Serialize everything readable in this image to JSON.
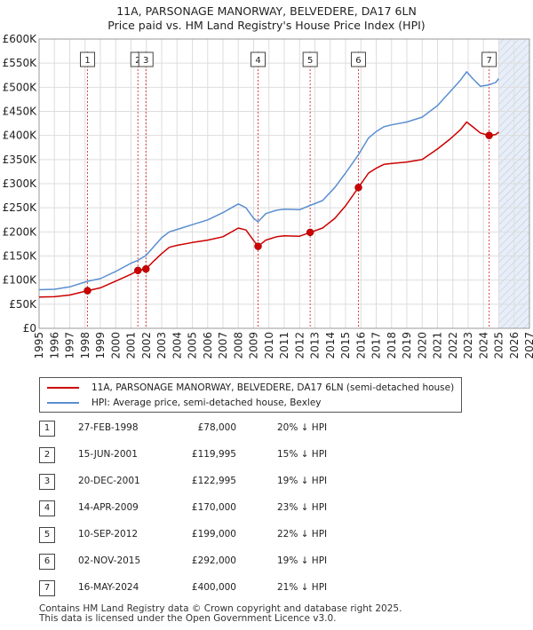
{
  "title_line1": "11A, PARSONAGE MANORWAY, BELVEDERE, DA17 6LN",
  "title_line2": "Price paid vs. HM Land Registry's House Price Index (HPI)",
  "legend": {
    "property_label": "11A, PARSONAGE MANORWAY, BELVEDERE, DA17 6LN (semi-detached house)",
    "hpi_label": "HPI: Average price, semi-detached house, Bexley"
  },
  "colors": {
    "property": "#cc0000",
    "hpi": "#5a8fd0",
    "marker_line": "#dd4444",
    "grid": "#dddddd",
    "shade": "#e8eef8"
  },
  "transactions": [
    {
      "num": "1",
      "date": "27-FEB-1998",
      "price": "£78,000",
      "hpi": "20% ↓ HPI"
    },
    {
      "num": "2",
      "date": "15-JUN-2001",
      "price": "£119,995",
      "hpi": "15% ↓ HPI"
    },
    {
      "num": "3",
      "date": "20-DEC-2001",
      "price": "£122,995",
      "hpi": "19% ↓ HPI"
    },
    {
      "num": "4",
      "date": "14-APR-2009",
      "price": "£170,000",
      "hpi": "23% ↓ HPI"
    },
    {
      "num": "5",
      "date": "10-SEP-2012",
      "price": "£199,000",
      "hpi": "22% ↓ HPI"
    },
    {
      "num": "6",
      "date": "02-NOV-2015",
      "price": "£292,000",
      "hpi": "19% ↓ HPI"
    },
    {
      "num": "7",
      "date": "16-MAY-2024",
      "price": "£400,000",
      "hpi": "21% ↓ HPI"
    }
  ],
  "footer_line1": "Contains HM Land Registry data © Crown copyright and database right 2025.",
  "footer_line2": "This data is licensed under the Open Government Licence v3.0.",
  "chart_data": {
    "type": "line",
    "xlim": [
      1995,
      2027
    ],
    "ylim": [
      0,
      600000
    ],
    "yticks": [
      0,
      50000,
      100000,
      150000,
      200000,
      250000,
      300000,
      350000,
      400000,
      450000,
      500000,
      550000,
      600000
    ],
    "ytick_labels": [
      "£0",
      "£50K",
      "£100K",
      "£150K",
      "£200K",
      "£250K",
      "£300K",
      "£350K",
      "£400K",
      "£450K",
      "£500K",
      "£550K",
      "£600K"
    ],
    "xticks": [
      "1995",
      "1996",
      "1997",
      "1998",
      "1999",
      "2000",
      "2001",
      "2002",
      "2003",
      "2004",
      "2005",
      "2006",
      "2007",
      "2008",
      "2009",
      "2010",
      "2011",
      "2012",
      "2013",
      "2014",
      "2015",
      "2016",
      "2017",
      "2018",
      "2019",
      "2020",
      "2021",
      "2022",
      "2023",
      "2024",
      "2025",
      "2026",
      "2027"
    ],
    "grid": true,
    "future_shaded_from": 2025.0,
    "series": [
      {
        "name": "11A, PARSONAGE MANORWAY, BELVEDERE, DA17 6LN (semi-detached house)",
        "points": [
          [
            1995.0,
            65000
          ],
          [
            1996.0,
            65500
          ],
          [
            1997.0,
            69000
          ],
          [
            1998.16,
            78000
          ],
          [
            1999.0,
            84000
          ],
          [
            2000.0,
            98000
          ],
          [
            2001.0,
            112000
          ],
          [
            2001.45,
            119995
          ],
          [
            2001.97,
            122995
          ],
          [
            2002.5,
            140000
          ],
          [
            2003.0,
            155000
          ],
          [
            2003.5,
            168000
          ],
          [
            2004.0,
            172000
          ],
          [
            2005.0,
            178000
          ],
          [
            2006.0,
            183000
          ],
          [
            2007.0,
            190000
          ],
          [
            2008.0,
            208000
          ],
          [
            2008.5,
            204000
          ],
          [
            2009.0,
            182000
          ],
          [
            2009.29,
            170000
          ],
          [
            2009.8,
            183000
          ],
          [
            2010.5,
            190000
          ],
          [
            2011.0,
            192000
          ],
          [
            2012.0,
            191000
          ],
          [
            2012.69,
            199000
          ],
          [
            2013.5,
            208000
          ],
          [
            2014.3,
            228000
          ],
          [
            2015.0,
            254000
          ],
          [
            2015.84,
            292000
          ],
          [
            2016.5,
            322000
          ],
          [
            2017.0,
            332000
          ],
          [
            2017.5,
            340000
          ],
          [
            2018.0,
            342000
          ],
          [
            2019.0,
            345000
          ],
          [
            2020.0,
            350000
          ],
          [
            2021.0,
            372000
          ],
          [
            2021.8,
            392000
          ],
          [
            2022.5,
            412000
          ],
          [
            2022.9,
            428000
          ],
          [
            2023.3,
            418000
          ],
          [
            2023.8,
            405000
          ],
          [
            2024.37,
            400000
          ],
          [
            2024.8,
            402000
          ],
          [
            2025.0,
            407000
          ]
        ]
      },
      {
        "name": "HPI: Average price, semi-detached house, Bexley",
        "points": [
          [
            1995.0,
            80000
          ],
          [
            1996.0,
            81000
          ],
          [
            1997.0,
            86000
          ],
          [
            1998.16,
            97500
          ],
          [
            1999.0,
            103000
          ],
          [
            2000.0,
            118000
          ],
          [
            2001.0,
            135000
          ],
          [
            2001.45,
            141000
          ],
          [
            2001.97,
            151000
          ],
          [
            2002.5,
            170000
          ],
          [
            2003.0,
            188000
          ],
          [
            2003.5,
            200000
          ],
          [
            2004.0,
            205000
          ],
          [
            2005.0,
            215000
          ],
          [
            2006.0,
            225000
          ],
          [
            2007.0,
            240000
          ],
          [
            2008.0,
            258000
          ],
          [
            2008.5,
            250000
          ],
          [
            2009.0,
            228000
          ],
          [
            2009.29,
            221000
          ],
          [
            2009.8,
            238000
          ],
          [
            2010.5,
            245000
          ],
          [
            2011.0,
            247000
          ],
          [
            2012.0,
            246000
          ],
          [
            2012.69,
            255000
          ],
          [
            2013.5,
            265000
          ],
          [
            2014.3,
            292000
          ],
          [
            2015.0,
            322000
          ],
          [
            2015.84,
            360000
          ],
          [
            2016.5,
            395000
          ],
          [
            2017.0,
            408000
          ],
          [
            2017.5,
            418000
          ],
          [
            2018.0,
            422000
          ],
          [
            2019.0,
            428000
          ],
          [
            2020.0,
            438000
          ],
          [
            2021.0,
            462000
          ],
          [
            2021.8,
            490000
          ],
          [
            2022.5,
            515000
          ],
          [
            2022.9,
            532000
          ],
          [
            2023.3,
            518000
          ],
          [
            2023.8,
            502000
          ],
          [
            2024.37,
            505000
          ],
          [
            2024.8,
            510000
          ],
          [
            2025.0,
            518000
          ]
        ]
      }
    ],
    "markers": [
      {
        "label": "1",
        "x": 1998.16,
        "y": 78000
      },
      {
        "label": "2",
        "x": 2001.45,
        "y": 119995
      },
      {
        "label": "3",
        "x": 2001.97,
        "y": 122995
      },
      {
        "label": "4",
        "x": 2009.29,
        "y": 170000
      },
      {
        "label": "5",
        "x": 2012.69,
        "y": 199000
      },
      {
        "label": "6",
        "x": 2015.84,
        "y": 292000
      },
      {
        "label": "7",
        "x": 2024.37,
        "y": 400000
      }
    ]
  }
}
